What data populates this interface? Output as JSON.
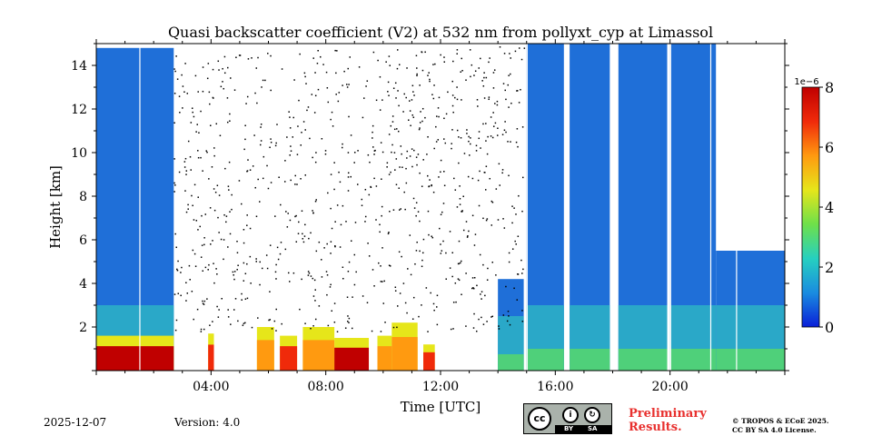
{
  "chart_data": {
    "type": "heatmap",
    "title": "Quasi backscatter coefficient (V2) at 532 nm from pollyxt_cyp at Limassol",
    "xlabel": "Time [UTC]",
    "ylabel": "Height [km]",
    "xlim_hours": [
      0,
      24
    ],
    "ylim_km": [
      0,
      15
    ],
    "x_ticks": [
      {
        "value": 4,
        "label": "04:00"
      },
      {
        "value": 8,
        "label": "08:00"
      },
      {
        "value": 12,
        "label": "12:00"
      },
      {
        "value": 16,
        "label": "16:00"
      },
      {
        "value": 20,
        "label": "20:00"
      }
    ],
    "y_ticks": [
      {
        "value": 2,
        "label": "2"
      },
      {
        "value": 4,
        "label": "4"
      },
      {
        "value": 6,
        "label": "6"
      },
      {
        "value": 8,
        "label": "8"
      },
      {
        "value": 10,
        "label": "10"
      },
      {
        "value": 12,
        "label": "12"
      },
      {
        "value": 14,
        "label": "14"
      }
    ],
    "colorbar": {
      "min": 0,
      "max": 8,
      "scale_label": "1e−6",
      "ticks": [
        {
          "value": 0,
          "label": "0"
        },
        {
          "value": 2,
          "label": "2"
        },
        {
          "value": 4,
          "label": "4"
        },
        {
          "value": 6,
          "label": "6"
        },
        {
          "value": 8,
          "label": "8"
        }
      ],
      "colors": [
        "#0a1fd8",
        "#1a8ce0",
        "#26d0c0",
        "#6ee04a",
        "#e6e61a",
        "#ff9a10",
        "#f02a0a",
        "#c00000"
      ]
    },
    "signal_segments": [
      {
        "t0": 0.0,
        "t1": 2.7,
        "cloud_top_km": 14.8,
        "boundary_layer_top_km": 2.0
      },
      {
        "t0": 14.0,
        "t1": 14.9,
        "cloud_top_km": 4.2,
        "boundary_layer_top_km": 1.5
      },
      {
        "t0": 15.0,
        "t1": 16.3,
        "cloud_top_km": 15.0,
        "boundary_layer_top_km": 2.0
      },
      {
        "t0": 16.5,
        "t1": 17.9,
        "cloud_top_km": 15.0,
        "boundary_layer_top_km": 2.0
      },
      {
        "t0": 18.2,
        "t1": 19.9,
        "cloud_top_km": 15.0,
        "boundary_layer_top_km": 2.0
      },
      {
        "t0": 20.0,
        "t1": 21.6,
        "cloud_top_km": 15.0,
        "boundary_layer_top_km": 2.0
      },
      {
        "t0": 21.6,
        "t1": 24.0,
        "cloud_top_km": 5.5,
        "boundary_layer_top_km": 2.0
      }
    ],
    "boundary_layer_aerosol": [
      {
        "t0": 0.0,
        "t1": 2.7,
        "top_km": 1.6,
        "peak_value": 7.5
      },
      {
        "t0": 3.9,
        "t1": 4.1,
        "top_km": 1.7,
        "peak_value": 6.5
      },
      {
        "t0": 5.6,
        "t1": 6.2,
        "top_km": 2.0,
        "peak_value": 6.0
      },
      {
        "t0": 6.4,
        "t1": 7.0,
        "top_km": 1.6,
        "peak_value": 7.0
      },
      {
        "t0": 7.2,
        "t1": 8.3,
        "top_km": 2.0,
        "peak_value": 6.0
      },
      {
        "t0": 8.3,
        "t1": 9.5,
        "top_km": 1.5,
        "peak_value": 7.5
      },
      {
        "t0": 9.8,
        "t1": 10.3,
        "top_km": 1.6,
        "peak_value": 6.0
      },
      {
        "t0": 10.3,
        "t1": 11.2,
        "top_km": 2.2,
        "peak_value": 5.5
      },
      {
        "t0": 11.4,
        "t1": 11.8,
        "top_km": 1.2,
        "peak_value": 6.5
      }
    ]
  },
  "footer": {
    "date": "2025-12-07",
    "version": "Version: 4.0",
    "cc_label": "cc",
    "by_label": "BY",
    "sa_label": "SA",
    "preliminary_line1": "Preliminary",
    "preliminary_line2": "Results.",
    "license_line1": "© TROPOS & ECoE 2025.",
    "license_line2": "CC BY SA 4.0 License."
  }
}
